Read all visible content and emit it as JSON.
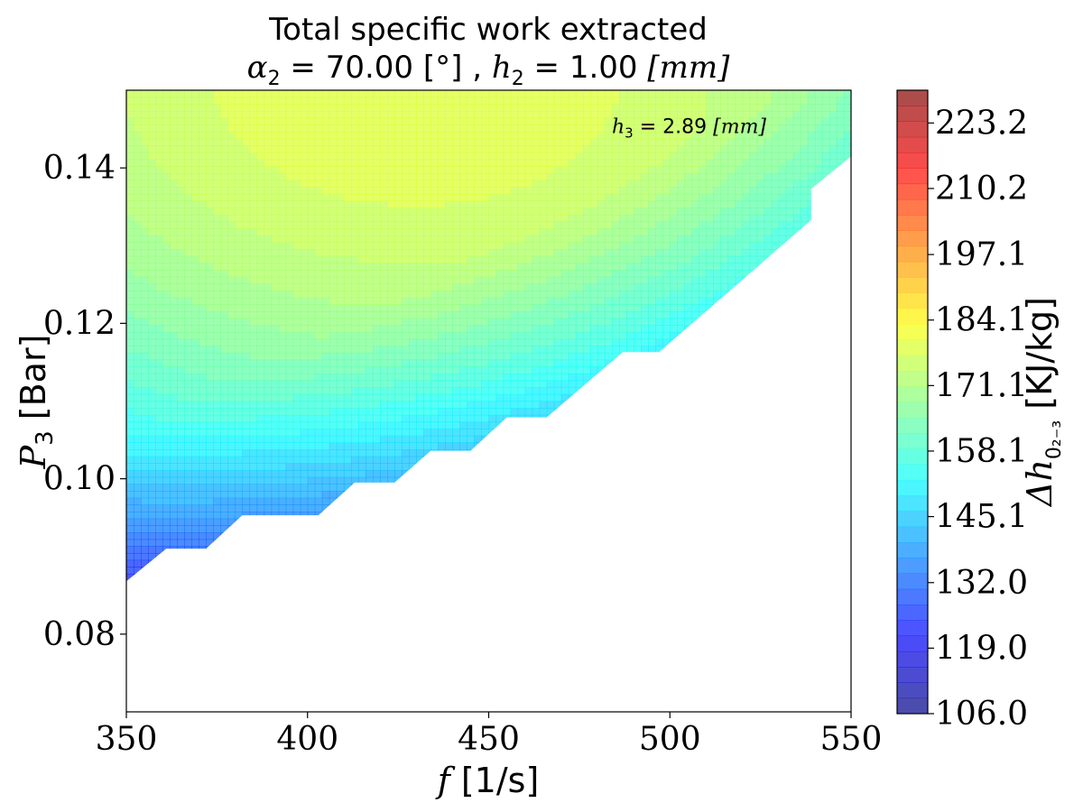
{
  "chart_data": {
    "type": "contour",
    "title": "Total specific work extracted",
    "subtitle": {
      "alpha_sym": "α",
      "alpha_sub": "2",
      "alpha_value": " = 70.00 [°] , ",
      "h_sym": "h",
      "h_sub": "2",
      "h_value": " = 1.00 ",
      "h_unit": "[mm]"
    },
    "xlabel": {
      "sym": "f",
      "unit": " [1/s]"
    },
    "ylabel": {
      "sym": "P",
      "sub": "3",
      "unit": " [Bar]"
    },
    "xlim": [
      350,
      550
    ],
    "ylim": [
      0.07,
      0.15
    ],
    "x_ticks": [
      350,
      400,
      450,
      500,
      550
    ],
    "x_tick_labels": [
      "350",
      "400",
      "450",
      "500",
      "550"
    ],
    "y_ticks": [
      0.08,
      0.1,
      0.12,
      0.14
    ],
    "y_tick_labels": [
      "0.08",
      "0.10",
      "0.12",
      "0.14"
    ],
    "annotation": {
      "sym": "h",
      "sub": "3",
      "value": " = 2.89 ",
      "unit": "[mm]",
      "x": 484,
      "y": 0.1445
    },
    "colorbar": {
      "label_sym": "Δh",
      "label_sub": "0₂₋₃",
      "label_unit": " [KJ/kg]",
      "min": 106.0,
      "max": 229.7,
      "ticks": [
        106.0,
        119.0,
        132.0,
        145.1,
        158.1,
        171.1,
        184.1,
        197.1,
        210.2,
        223.2
      ],
      "tick_labels": [
        "106.0",
        "119.0",
        "132.0",
        "145.1",
        "158.1",
        "171.1",
        "184.1",
        "197.1",
        "210.2",
        "223.2"
      ],
      "colormap": "jet",
      "alpha": 0.7
    },
    "field": {
      "peak_f": 430,
      "peak_p": 0.152,
      "peak_value": 180,
      "base_value": 148,
      "drop_pressure_ref": 0.09
    },
    "valid_region_boundary": [
      [
        350,
        0.0868
      ],
      [
        361,
        0.091
      ],
      [
        372,
        0.091
      ],
      [
        382,
        0.0953
      ],
      [
        403,
        0.0953
      ],
      [
        413,
        0.0995
      ],
      [
        424,
        0.0995
      ],
      [
        434,
        0.1036
      ],
      [
        445,
        0.1036
      ],
      [
        455,
        0.1079
      ],
      [
        466,
        0.1079
      ],
      [
        487,
        0.1163
      ],
      [
        497,
        0.1163
      ],
      [
        539,
        0.1333
      ],
      [
        539,
        0.1373
      ],
      [
        550,
        0.1415
      ]
    ]
  }
}
